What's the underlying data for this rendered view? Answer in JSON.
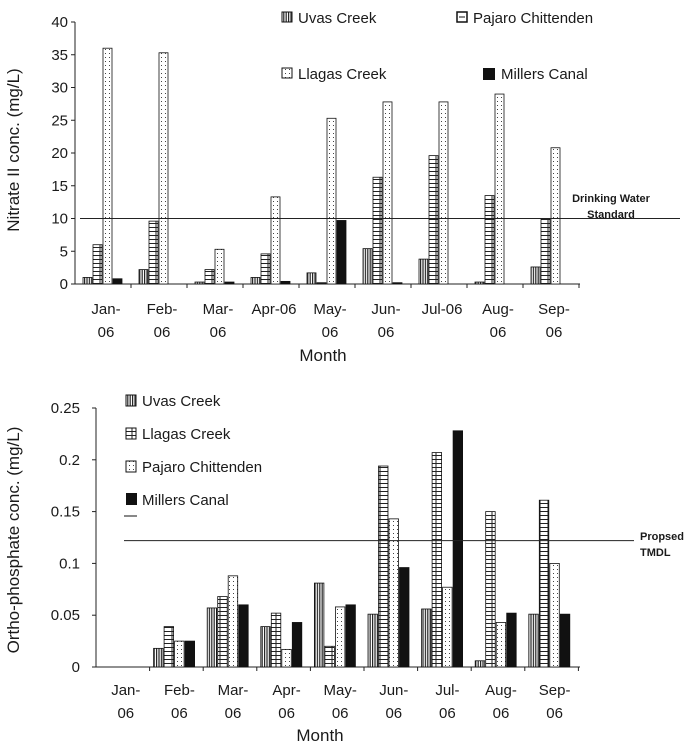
{
  "chart_data": [
    {
      "type": "bar",
      "ylabel": "Nitrate II conc. (mg/L)",
      "xlabel": "Month",
      "ylim": [
        0,
        40
      ],
      "yticks": [
        "0",
        "5",
        "10",
        "15",
        "20",
        "25",
        "30",
        "35",
        "40"
      ],
      "categories": [
        [
          "Jan-",
          "06"
        ],
        [
          "Feb-",
          "06"
        ],
        [
          "Mar-",
          "06"
        ],
        [
          "Apr-06"
        ],
        [
          "May-",
          "06"
        ],
        [
          "Jun-",
          "06"
        ],
        [
          "Jul-06"
        ],
        [
          "Aug-",
          "06"
        ],
        [
          "Sep-",
          "06"
        ]
      ],
      "series": [
        {
          "name": "Uvas Creek",
          "pattern": "vstripe",
          "values": [
            1.0,
            2.2,
            0.3,
            1.0,
            1.7,
            5.4,
            3.8,
            0.3,
            2.6
          ]
        },
        {
          "name": "Llagas Creek",
          "pattern": "brick",
          "values": [
            6.0,
            9.6,
            2.2,
            4.6,
            0.2,
            16.3,
            19.6,
            13.5,
            10.0
          ]
        },
        {
          "name": "Pajaro Chittenden",
          "pattern": "dots",
          "values": [
            36.0,
            35.3,
            5.3,
            13.3,
            25.3,
            27.8,
            27.8,
            29.0,
            20.8
          ]
        },
        {
          "name": "Millers Canal",
          "pattern": "solid",
          "values": [
            0.8,
            0.0,
            0.3,
            0.4,
            9.7,
            0.2,
            0.0,
            0.0,
            0.0
          ]
        }
      ],
      "legend_order": [
        0,
        2,
        1,
        3
      ],
      "reference_line": {
        "value": 10,
        "label": [
          "Drinking Water",
          "Standard"
        ]
      }
    },
    {
      "type": "bar",
      "ylabel": "Ortho-phosphate conc. (mg/L)",
      "xlabel": "Month",
      "ylim": [
        0,
        0.25
      ],
      "yticks": [
        "0",
        "0.05",
        "0.1",
        "0.15",
        "0.2",
        "0.25"
      ],
      "categories": [
        [
          "Jan-",
          "06"
        ],
        [
          "Feb-",
          "06"
        ],
        [
          "Mar-",
          "06"
        ],
        [
          "Apr-",
          "06"
        ],
        [
          "May-",
          "06"
        ],
        [
          "Jun-",
          "06"
        ],
        [
          "Jul-",
          "06"
        ],
        [
          "Aug-",
          "06"
        ],
        [
          "Sep-",
          "06"
        ]
      ],
      "series": [
        {
          "name": "Uvas Creek",
          "pattern": "vstripe",
          "values": [
            0,
            0.018,
            0.057,
            0.039,
            0.081,
            0.051,
            0.056,
            0.006,
            0.051
          ]
        },
        {
          "name": "Llagas Creek",
          "pattern": "brick",
          "values": [
            0,
            0.039,
            0.068,
            0.052,
            0.02,
            0.194,
            0.207,
            0.15,
            0.161
          ]
        },
        {
          "name": "Pajaro Chittenden",
          "pattern": "dots",
          "values": [
            0,
            0.025,
            0.088,
            0.017,
            0.058,
            0.143,
            0.077,
            0.043,
            0.1
          ]
        },
        {
          "name": "Millers Canal",
          "pattern": "solid",
          "values": [
            0,
            0.025,
            0.06,
            0.043,
            0.06,
            0.096,
            0.228,
            0.052,
            0.051
          ]
        }
      ],
      "legend_order": [
        0,
        1,
        2,
        3
      ],
      "reference_line": {
        "value": 0.122,
        "label": [
          "Propsed",
          "TMDL"
        ]
      }
    }
  ]
}
